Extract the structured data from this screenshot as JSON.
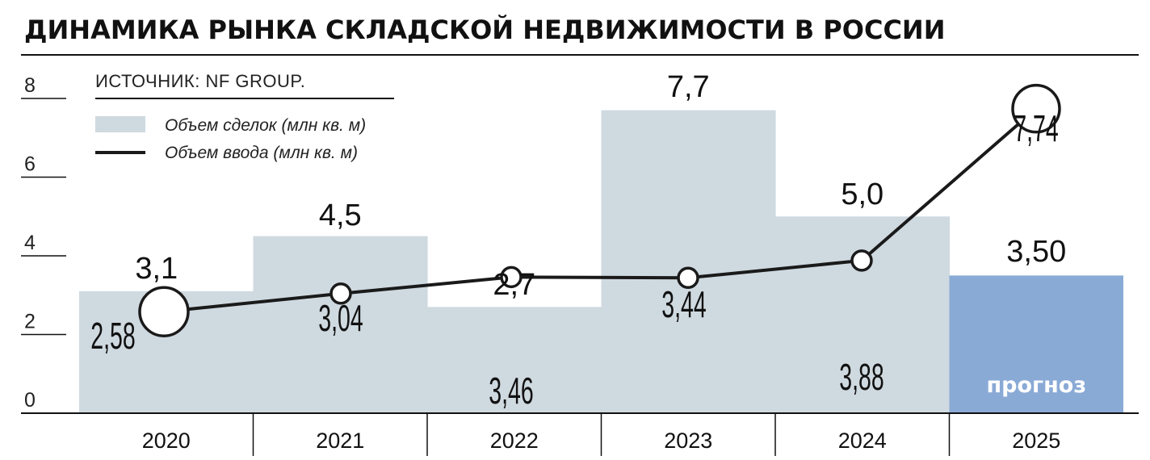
{
  "title": "ДИНАМИКА РЫНКА СКЛАДСКОЙ НЕДВИЖИМОСТИ В РОССИИ",
  "source": "ИСТОЧНИК:  NF GROUP.",
  "forecast_label": "прогноз",
  "colors": {
    "bar": "#cfd9e0",
    "bar_forecast": "#8aaad6",
    "line": "#1a1a1a",
    "text": "#111111"
  },
  "chart_data": {
    "type": "bar",
    "categories": [
      "2020",
      "2021",
      "2022",
      "2023",
      "2024",
      "2025"
    ],
    "ylim": [
      0,
      8
    ],
    "yticks": [
      "0",
      "2",
      "4",
      "6",
      "8"
    ],
    "grid": false,
    "legend_position": "top-left",
    "series": [
      {
        "name": "Объем сделок (млн кв. м)",
        "type": "bar",
        "values": [
          3.1,
          4.5,
          2.7,
          7.7,
          5.0,
          3.5
        ],
        "labels": [
          "3,1",
          "4,5",
          "2,7",
          "7,7",
          "5,0",
          "3,50"
        ]
      },
      {
        "name": "Объем ввода (млн кв. м)",
        "type": "line",
        "values": [
          2.58,
          3.04,
          3.46,
          3.44,
          3.88,
          7.74
        ],
        "labels": [
          "2,58",
          "3,04",
          "3,46",
          "3,44",
          "3,88",
          "7,74"
        ]
      }
    ],
    "forecast_category": "2025"
  }
}
